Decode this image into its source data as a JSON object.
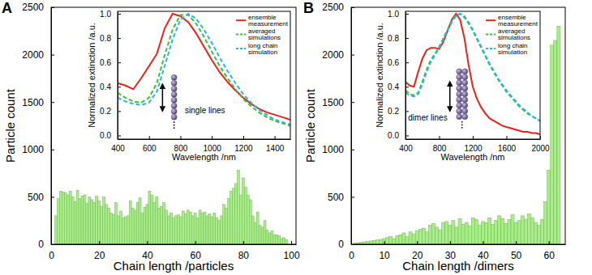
{
  "chart_data": [
    {
      "type": "bar",
      "title": "A",
      "x_label": "Chain length /particles",
      "y_label": "Particle count",
      "color": "#a6ef84",
      "x": [
        2,
        3,
        4,
        5,
        6,
        7,
        8,
        9,
        10,
        11,
        12,
        13,
        14,
        15,
        16,
        17,
        18,
        19,
        20,
        21,
        22,
        23,
        24,
        25,
        26,
        27,
        28,
        29,
        30,
        31,
        32,
        33,
        34,
        35,
        36,
        37,
        38,
        39,
        40,
        41,
        42,
        43,
        44,
        45,
        46,
        47,
        48,
        49,
        50,
        51,
        52,
        53,
        54,
        55,
        56,
        57,
        58,
        59,
        60,
        61,
        62,
        63,
        64,
        65,
        66,
        67,
        68,
        69,
        70,
        71,
        72,
        73,
        74,
        75,
        76,
        77,
        78,
        79,
        80,
        81,
        82,
        83,
        84,
        85,
        86,
        87,
        88,
        89,
        90,
        91,
        92,
        93,
        94,
        95,
        96,
        97,
        98
      ],
      "values": [
        300,
        480,
        560,
        550,
        540,
        520,
        560,
        500,
        450,
        570,
        480,
        510,
        520,
        430,
        500,
        470,
        440,
        510,
        460,
        400,
        500,
        420,
        380,
        330,
        310,
        440,
        300,
        350,
        280,
        290,
        300,
        460,
        380,
        360,
        440,
        490,
        330,
        390,
        420,
        560,
        520,
        440,
        500,
        380,
        400,
        440,
        360,
        300,
        330,
        280,
        300,
        310,
        290,
        350,
        320,
        360,
        340,
        300,
        330,
        280,
        360,
        330,
        340,
        300,
        320,
        290,
        330,
        280,
        250,
        300,
        420,
        380,
        480,
        560,
        590,
        640,
        780,
        520,
        700,
        600,
        520,
        470,
        300,
        230,
        340,
        200,
        180,
        250,
        150,
        120,
        140,
        100,
        100,
        90,
        60,
        70,
        50
      ],
      "xlim": [
        0,
        102
      ],
      "xticks": [
        0,
        20,
        40,
        60,
        80,
        100
      ],
      "ylim": [
        0,
        2500
      ],
      "yticks": [
        0,
        500,
        1000,
        1500,
        2000,
        2500
      ]
    },
    {
      "type": "line",
      "x_label": "Wavelength /nm",
      "y_label": "Normalized extinction /a.u.",
      "annotation": "single lines",
      "legend": "upper right",
      "x": [
        400,
        450,
        500,
        550,
        600,
        650,
        700,
        750,
        800,
        850,
        900,
        950,
        1000,
        1050,
        1100,
        1150,
        1200,
        1250,
        1300,
        1350,
        1400,
        1450,
        1500
      ],
      "series": [
        {
          "name": "ensemble measurement",
          "color": "#e8231d",
          "line_style": "solid",
          "values": [
            0.43,
            0.41,
            0.38,
            0.47,
            0.57,
            0.67,
            0.88,
            1.0,
            0.98,
            0.93,
            0.84,
            0.73,
            0.62,
            0.52,
            0.44,
            0.37,
            0.31,
            0.26,
            0.22,
            0.19,
            0.17,
            0.15,
            0.13
          ]
        },
        {
          "name": "averaged simulations",
          "color": "#35c435",
          "line_style": "dashed",
          "values": [
            0.35,
            0.31,
            0.28,
            0.27,
            0.31,
            0.43,
            0.66,
            0.87,
            0.99,
            0.99,
            0.92,
            0.81,
            0.69,
            0.57,
            0.47,
            0.38,
            0.3,
            0.24,
            0.19,
            0.15,
            0.12,
            0.1,
            0.08
          ]
        },
        {
          "name": "long chain simulation",
          "color": "#28b6ea",
          "line_style": "dashed",
          "values": [
            0.31,
            0.28,
            0.26,
            0.25,
            0.27,
            0.36,
            0.57,
            0.79,
            0.95,
            1.0,
            0.96,
            0.87,
            0.76,
            0.64,
            0.53,
            0.43,
            0.34,
            0.27,
            0.21,
            0.17,
            0.13,
            0.11,
            0.09
          ]
        }
      ],
      "xlim": [
        400,
        1500
      ],
      "xticks": [
        400,
        600,
        800,
        1000,
        1200,
        1400
      ],
      "ylim": [
        -0.03,
        1.02
      ],
      "yticks": [
        {
          "value": 0,
          "label": "0.0"
        },
        0.2,
        0.4,
        0.6,
        0.8,
        {
          "value": 1,
          "label": "1.0"
        }
      ]
    },
    {
      "type": "bar",
      "title": "B",
      "x_label": "Chain length /dimers",
      "y_label": "Particle count",
      "color": "#a6ef84",
      "x": [
        1,
        2,
        3,
        4,
        5,
        6,
        7,
        8,
        9,
        10,
        11,
        12,
        13,
        14,
        15,
        16,
        17,
        18,
        19,
        20,
        21,
        22,
        23,
        24,
        25,
        26,
        27,
        28,
        29,
        30,
        31,
        32,
        33,
        34,
        35,
        36,
        37,
        38,
        39,
        40,
        41,
        42,
        43,
        44,
        45,
        46,
        47,
        48,
        49,
        50,
        51,
        52,
        53,
        54,
        55,
        56,
        57,
        58,
        59,
        60,
        61,
        62,
        63
      ],
      "values": [
        10,
        15,
        20,
        25,
        30,
        35,
        40,
        45,
        50,
        60,
        70,
        80,
        60,
        90,
        100,
        120,
        80,
        130,
        110,
        140,
        160,
        170,
        130,
        200,
        220,
        180,
        150,
        230,
        240,
        200,
        250,
        180,
        270,
        210,
        230,
        190,
        280,
        260,
        200,
        240,
        230,
        280,
        210,
        250,
        300,
        270,
        220,
        260,
        310,
        230,
        250,
        300,
        260,
        320,
        280,
        230,
        200,
        260,
        450,
        780,
        2100,
        2150,
        2300
      ],
      "xlim": [
        0,
        65
      ],
      "xticks": [
        0,
        10,
        20,
        30,
        40,
        50,
        60
      ],
      "ylim": [
        0,
        2500
      ],
      "yticks": [
        0,
        500,
        1000,
        1500,
        2000,
        2500
      ]
    },
    {
      "type": "line",
      "x_label": "Wavelength /nm",
      "y_label": "Normalized extinction /a.u.",
      "annotation": "dimer lines",
      "legend": "upper right",
      "x": [
        400,
        450,
        500,
        550,
        600,
        650,
        700,
        750,
        800,
        850,
        900,
        950,
        1000,
        1050,
        1100,
        1150,
        1200,
        1250,
        1300,
        1350,
        1400,
        1450,
        1500,
        1550,
        1600,
        1650,
        1700,
        1750,
        1800,
        1850,
        1900,
        1950,
        2000
      ],
      "series": [
        {
          "name": "ensemble measurement",
          "color": "#e8231d",
          "line_style": "solid",
          "values": [
            0.44,
            0.41,
            0.4,
            0.52,
            0.63,
            0.7,
            0.72,
            0.72,
            0.71,
            0.77,
            0.86,
            0.95,
            1.0,
            0.95,
            0.8,
            0.58,
            0.4,
            0.3,
            0.23,
            0.18,
            0.14,
            0.12,
            0.1,
            0.08,
            0.07,
            0.06,
            0.05,
            0.04,
            0.03,
            0.03,
            0.02,
            0.02,
            0.01
          ]
        },
        {
          "name": "averaged simulations",
          "color": "#35c435",
          "line_style": "dashed",
          "values": [
            0.37,
            0.34,
            0.33,
            0.35,
            0.44,
            0.54,
            0.62,
            0.67,
            0.73,
            0.8,
            0.87,
            0.94,
            0.99,
            1.0,
            0.97,
            0.92,
            0.86,
            0.79,
            0.72,
            0.65,
            0.58,
            0.52,
            0.46,
            0.41,
            0.36,
            0.32,
            0.28,
            0.24,
            0.21,
            0.18,
            0.16,
            0.14,
            0.12
          ]
        },
        {
          "name": "long chain simulation",
          "color": "#28b6ea",
          "line_style": "dashed",
          "values": [
            0.35,
            0.33,
            0.32,
            0.34,
            0.42,
            0.52,
            0.6,
            0.66,
            0.72,
            0.79,
            0.86,
            0.93,
            0.98,
            1.0,
            0.98,
            0.93,
            0.87,
            0.8,
            0.73,
            0.66,
            0.59,
            0.53,
            0.47,
            0.42,
            0.37,
            0.33,
            0.29,
            0.25,
            0.22,
            0.19,
            0.16,
            0.14,
            0.12
          ]
        }
      ],
      "xlim": [
        400,
        2000
      ],
      "xticks": [
        400,
        800,
        1200,
        1600,
        2000
      ],
      "ylim": [
        -0.03,
        1.02
      ],
      "yticks": [
        {
          "value": 0,
          "label": "0.0"
        },
        0.2,
        0.4,
        0.6,
        0.8,
        {
          "value": 1,
          "label": "1.0"
        }
      ]
    }
  ]
}
